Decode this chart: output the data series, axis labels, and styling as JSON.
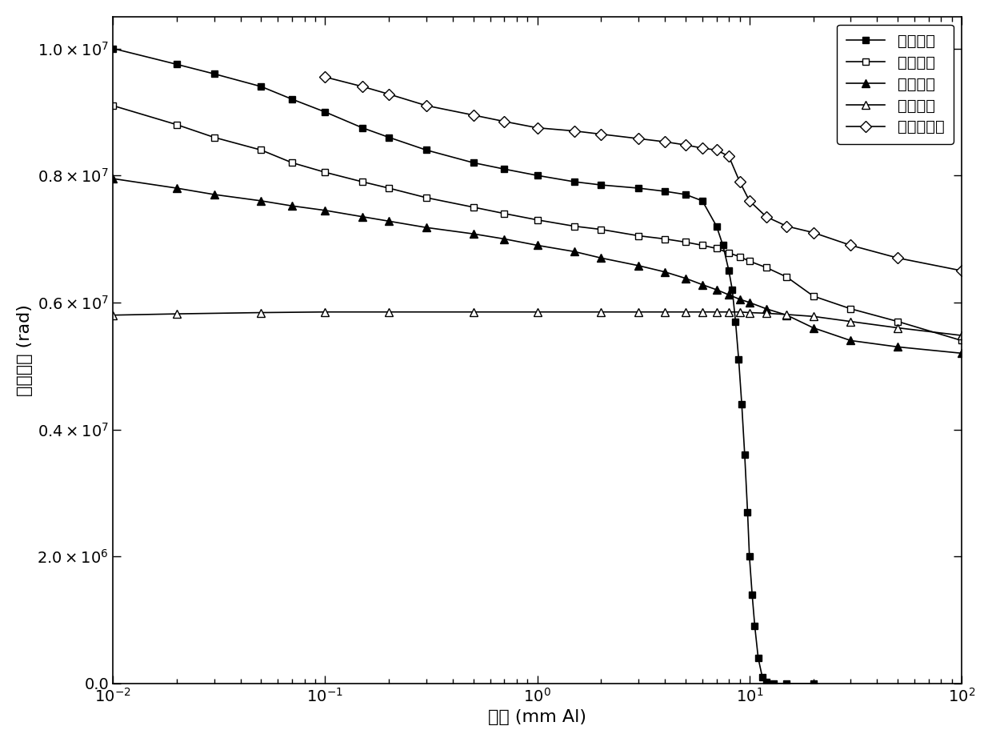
{
  "title": "",
  "xlabel": "厕度 (mm Al)",
  "ylabel": "吸收剂量 (rad)",
  "xlim": [
    0.01,
    100
  ],
  "ylim": [
    0,
    10500000.0
  ],
  "yticks": [
    0,
    2000000,
    4000000,
    6000000,
    8000000,
    10000000
  ],
  "legend_labels": [
    "傘获电子",
    "傘获质子",
    "二次光子",
    "太阳质子",
    "总吸收剂量"
  ],
  "background_color": "#ffffff",
  "line_color": "#000000",
  "trapped_electron_x": [
    0.01,
    0.02,
    0.03,
    0.05,
    0.07,
    0.1,
    0.15,
    0.2,
    0.3,
    0.5,
    0.7,
    1.0,
    1.5,
    2.0,
    3.0,
    4.0,
    5.0,
    6.0,
    7.0,
    7.5,
    8.0,
    8.3,
    8.6,
    8.9,
    9.2,
    9.5,
    9.8,
    10.0,
    10.3,
    10.6,
    11.0,
    11.5,
    12.0,
    13.0,
    15.0,
    20.0
  ],
  "trapped_electron_y": [
    10000000,
    9750000,
    9600000,
    9400000,
    9200000,
    9000000,
    8750000,
    8600000,
    8400000,
    8200000,
    8100000,
    8000000,
    7900000,
    7850000,
    7800000,
    7750000,
    7700000,
    7600000,
    7200000,
    6900000,
    6500000,
    6200000,
    5700000,
    5100000,
    4400000,
    3600000,
    2700000,
    2000000,
    1400000,
    900000,
    400000,
    100000,
    20000,
    1000,
    0,
    0
  ],
  "trapped_proton_x": [
    0.01,
    0.02,
    0.03,
    0.05,
    0.07,
    0.1,
    0.15,
    0.2,
    0.3,
    0.5,
    0.7,
    1.0,
    1.5,
    2.0,
    3.0,
    4.0,
    5.0,
    6.0,
    7.0,
    8.0,
    9.0,
    10.0,
    12.0,
    15.0,
    20.0,
    30.0,
    50.0,
    100.0
  ],
  "trapped_proton_y": [
    9100000,
    8800000,
    8600000,
    8400000,
    8200000,
    8050000,
    7900000,
    7800000,
    7650000,
    7500000,
    7400000,
    7300000,
    7200000,
    7150000,
    7050000,
    7000000,
    6950000,
    6900000,
    6850000,
    6780000,
    6720000,
    6650000,
    6550000,
    6400000,
    6100000,
    5900000,
    5700000,
    5400000
  ],
  "secondary_photon_x": [
    0.01,
    0.02,
    0.03,
    0.05,
    0.07,
    0.1,
    0.15,
    0.2,
    0.3,
    0.5,
    0.7,
    1.0,
    1.5,
    2.0,
    3.0,
    4.0,
    5.0,
    6.0,
    7.0,
    8.0,
    9.0,
    10.0,
    12.0,
    15.0,
    20.0,
    30.0,
    50.0,
    100.0
  ],
  "secondary_photon_y": [
    7950000,
    7800000,
    7700000,
    7600000,
    7520000,
    7450000,
    7350000,
    7280000,
    7180000,
    7080000,
    7000000,
    6900000,
    6800000,
    6700000,
    6580000,
    6480000,
    6380000,
    6280000,
    6200000,
    6120000,
    6050000,
    6000000,
    5900000,
    5800000,
    5600000,
    5400000,
    5300000,
    5200000
  ],
  "solar_proton_x": [
    0.01,
    0.02,
    0.05,
    0.1,
    0.2,
    0.5,
    1.0,
    2.0,
    3.0,
    4.0,
    5.0,
    6.0,
    7.0,
    8.0,
    9.0,
    10.0,
    12.0,
    15.0,
    20.0,
    30.0,
    50.0,
    100.0
  ],
  "solar_proton_y": [
    5800000,
    5820000,
    5840000,
    5850000,
    5850000,
    5850000,
    5850000,
    5850000,
    5850000,
    5850000,
    5850000,
    5850000,
    5850000,
    5850000,
    5850000,
    5840000,
    5830000,
    5810000,
    5780000,
    5700000,
    5600000,
    5480000
  ],
  "total_dose_x": [
    0.1,
    0.15,
    0.2,
    0.3,
    0.5,
    0.7,
    1.0,
    1.5,
    2.0,
    3.0,
    4.0,
    5.0,
    6.0,
    7.0,
    8.0,
    9.0,
    10.0,
    12.0,
    15.0,
    20.0,
    30.0,
    50.0,
    100.0
  ],
  "total_dose_y": [
    9550000,
    9400000,
    9280000,
    9100000,
    8950000,
    8850000,
    8750000,
    8700000,
    8650000,
    8580000,
    8530000,
    8480000,
    8430000,
    8400000,
    8300000,
    7900000,
    7600000,
    7350000,
    7200000,
    7100000,
    6900000,
    6700000,
    6500000
  ],
  "fontsize_axis_label": 16,
  "fontsize_tick": 14,
  "fontsize_legend": 14
}
